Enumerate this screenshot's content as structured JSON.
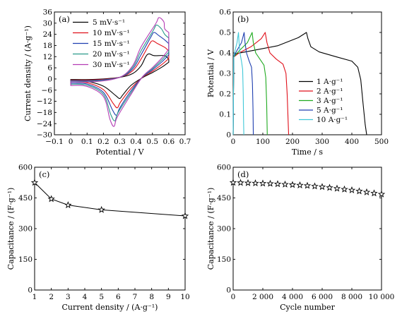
{
  "chart_data": [
    {
      "id": "a",
      "type": "line",
      "panel_label": "(a)",
      "xlabel": "Potential / V",
      "ylabel": "Current density / (A·g⁻¹)",
      "xlim": [
        -0.1,
        0.7
      ],
      "ylim": [
        -30,
        36
      ],
      "xticks": [
        -0.1,
        0.0,
        0.1,
        0.2,
        0.3,
        0.4,
        0.5,
        0.6,
        0.7
      ],
      "xtick_labels": [
        "−0.1",
        "0",
        "0.1",
        "0.2",
        "0.3",
        "0.4",
        "0.5",
        "0.6",
        "0.7"
      ],
      "yticks": [
        -30,
        -24,
        -18,
        -12,
        -6,
        0,
        6,
        12,
        18,
        24,
        30,
        36
      ],
      "ytick_labels": [
        "−30",
        "−24",
        "−18",
        "−12",
        "−6",
        "0",
        "6",
        "12",
        "18",
        "24",
        "30",
        "36"
      ],
      "legend_position": "top-center",
      "series": [
        {
          "name": "5 mV·s⁻¹",
          "color": "#000000",
          "anodic_peak": [
            0.48,
            13.5
          ],
          "cathodic_peak": [
            0.3,
            -10.5
          ],
          "end_upper": 10.5,
          "end_lower": 9.0,
          "start_upper": -0.3,
          "start_lower": -0.8
        },
        {
          "name": "10 mV·s⁻¹",
          "color": "#e0101a",
          "anodic_peak": [
            0.5,
            20.5
          ],
          "cathodic_peak": [
            0.285,
            -15.5
          ],
          "end_upper": 15.0,
          "end_lower": 11.0,
          "start_upper": -0.6,
          "start_lower": -1.5
        },
        {
          "name": "15 mV·s⁻¹",
          "color": "#1f3fb0",
          "anodic_peak": [
            0.51,
            25.0
          ],
          "cathodic_peak": [
            0.28,
            -19.5
          ],
          "end_upper": 19.0,
          "end_lower": 13.0,
          "start_upper": -0.9,
          "start_lower": -2.2
        },
        {
          "name": "20 mV·s⁻¹",
          "color": "#2a9a8a",
          "anodic_peak": [
            0.525,
            29.0
          ],
          "cathodic_peak": [
            0.27,
            -22.5
          ],
          "end_upper": 22.0,
          "end_lower": 14.5,
          "start_upper": -1.2,
          "start_lower": -2.8
        },
        {
          "name": "30 mV·s⁻¹",
          "color": "#b43cb4",
          "anodic_peak": [
            0.54,
            33.0
          ],
          "cathodic_peak": [
            0.265,
            -25.5
          ],
          "end_upper": 25.0,
          "end_lower": 16.0,
          "start_upper": -1.5,
          "start_lower": -3.5
        }
      ]
    },
    {
      "id": "b",
      "type": "line",
      "panel_label": "(b)",
      "xlabel": "Time / s",
      "ylabel": "Potential / V",
      "xlim": [
        0,
        500
      ],
      "ylim": [
        0,
        0.6
      ],
      "xticks": [
        0,
        100,
        200,
        300,
        400,
        500
      ],
      "xtick_labels": [
        "0",
        "100",
        "200",
        "300",
        "400",
        "500"
      ],
      "yticks": [
        0,
        0.1,
        0.2,
        0.3,
        0.4,
        0.5,
        0.6
      ],
      "ytick_labels": [
        "0",
        "0.1",
        "0.2",
        "0.3",
        "0.4",
        "0.5",
        "0.6"
      ],
      "legend_position": "bottom-right",
      "series": [
        {
          "name": "1 A·g⁻¹",
          "color": "#000000",
          "points": [
            [
              0,
              0
            ],
            [
              2,
              0.38
            ],
            [
              5,
              0.395
            ],
            [
              60,
              0.41
            ],
            [
              150,
              0.435
            ],
            [
              220,
              0.475
            ],
            [
              247,
              0.5
            ],
            [
              252,
              0.47
            ],
            [
              262,
              0.43
            ],
            [
              290,
              0.405
            ],
            [
              350,
              0.38
            ],
            [
              400,
              0.36
            ],
            [
              420,
              0.33
            ],
            [
              430,
              0.27
            ],
            [
              438,
              0.15
            ],
            [
              445,
              0.05
            ],
            [
              450,
              0
            ]
          ]
        },
        {
          "name": "2 A·g⁻¹",
          "color": "#e0101a",
          "points": [
            [
              0,
              0
            ],
            [
              2,
              0.38
            ],
            [
              20,
              0.4
            ],
            [
              60,
              0.43
            ],
            [
              95,
              0.47
            ],
            [
              108,
              0.5
            ],
            [
              114,
              0.45
            ],
            [
              124,
              0.4
            ],
            [
              145,
              0.37
            ],
            [
              168,
              0.345
            ],
            [
              178,
              0.3
            ],
            [
              182,
              0.2
            ],
            [
              185,
              0.08
            ],
            [
              187,
              0
            ]
          ]
        },
        {
          "name": "3 A·g⁻¹",
          "color": "#1faa1f",
          "points": [
            [
              0,
              0
            ],
            [
              2,
              0.38
            ],
            [
              20,
              0.41
            ],
            [
              48,
              0.45
            ],
            [
              64,
              0.5
            ],
            [
              68,
              0.45
            ],
            [
              76,
              0.4
            ],
            [
              90,
              0.37
            ],
            [
              104,
              0.34
            ],
            [
              110,
              0.28
            ],
            [
              113,
              0.15
            ],
            [
              115,
              0
            ]
          ]
        },
        {
          "name": "5 A·g⁻¹",
          "color": "#1f3fb0",
          "points": [
            [
              0,
              0
            ],
            [
              2,
              0.38
            ],
            [
              12,
              0.41
            ],
            [
              28,
              0.45
            ],
            [
              37,
              0.5
            ],
            [
              40,
              0.45
            ],
            [
              45,
              0.4
            ],
            [
              54,
              0.36
            ],
            [
              62,
              0.33
            ],
            [
              65,
              0.25
            ],
            [
              67,
              0.12
            ],
            [
              68,
              0
            ]
          ]
        },
        {
          "name": "10 A·g⁻¹",
          "color": "#40c8d8",
          "points": [
            [
              0,
              0
            ],
            [
              2,
              0.38
            ],
            [
              6,
              0.41
            ],
            [
              13,
              0.45
            ],
            [
              18,
              0.5
            ],
            [
              20,
              0.45
            ],
            [
              23,
              0.4
            ],
            [
              28,
              0.36
            ],
            [
              32,
              0.32
            ],
            [
              34,
              0.2
            ],
            [
              35,
              0.08
            ],
            [
              36,
              0
            ]
          ]
        }
      ]
    },
    {
      "id": "c",
      "type": "line",
      "panel_label": "(c)",
      "xlabel": "Current density / (A·g⁻¹)",
      "ylabel": "Capacitance / (F·g⁻¹)",
      "xlim": [
        1,
        10
      ],
      "ylim": [
        0,
        600
      ],
      "xticks": [
        1,
        2,
        3,
        4,
        5,
        6,
        7,
        8,
        9,
        10
      ],
      "xtick_labels": [
        "1",
        "2",
        "3",
        "4",
        "5",
        "6",
        "7",
        "8",
        "9",
        "10"
      ],
      "yticks": [
        0,
        150,
        300,
        450,
        600
      ],
      "ytick_labels": [
        "0",
        "150",
        "300",
        "450",
        "600"
      ],
      "marker": "star",
      "series": [
        {
          "color": "#000000",
          "x": [
            1,
            2,
            3,
            5,
            10
          ],
          "y": [
            525,
            445,
            415,
            392,
            362
          ]
        }
      ]
    },
    {
      "id": "d",
      "type": "scatter",
      "panel_label": "(d)",
      "xlabel": "Cycle number",
      "ylabel": "Capacitance / (F·g⁻¹)",
      "xlim": [
        0,
        10000
      ],
      "ylim": [
        0,
        600
      ],
      "xticks": [
        0,
        2000,
        4000,
        6000,
        8000,
        10000
      ],
      "xtick_labels": [
        "0",
        "2 000",
        "4 000",
        "6 000",
        "8 000",
        "10 000"
      ],
      "yticks": [
        0,
        150,
        300,
        450,
        600
      ],
      "ytick_labels": [
        "0",
        "150",
        "300",
        "450",
        "600"
      ],
      "marker": "star",
      "series": [
        {
          "color": "#000000",
          "x": [
            0,
            500,
            1000,
            1500,
            2000,
            2500,
            3000,
            3500,
            4000,
            4500,
            5000,
            5500,
            6000,
            6500,
            7000,
            7500,
            8000,
            8500,
            9000,
            9500,
            10000
          ],
          "y": [
            525,
            524,
            523,
            522,
            521,
            520,
            518,
            516,
            514,
            512,
            510,
            507,
            504,
            500,
            496,
            492,
            488,
            483,
            478,
            473,
            468
          ]
        }
      ]
    }
  ]
}
